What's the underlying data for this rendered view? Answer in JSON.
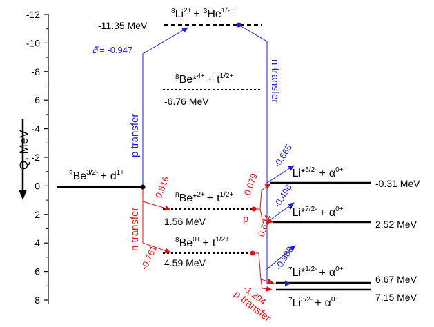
{
  "axis": {
    "label": "Q, MeV",
    "ticks": [
      "-12",
      "-10",
      "-8",
      "-6",
      "-4",
      "-2",
      "0",
      "2",
      "4",
      "6",
      "8"
    ]
  },
  "levels": {
    "li8_he3": {
      "A": "8",
      "el1": "Li",
      "j1": "2+",
      "plus": "+",
      "B": "3",
      "el2": "He",
      "j2": "1/2+",
      "value": "-11.35 MeV"
    },
    "be8_excited4": {
      "A": "8",
      "el1": "Be*",
      "j1": "4+",
      "plus": "+",
      "el2": "t",
      "j2": "1/2+",
      "value": "-6.76 MeV"
    },
    "be9_d": {
      "A": "9",
      "el1": "Be",
      "j1": "3/2-",
      "plus": "+",
      "el2": "d",
      "j2": "1+"
    },
    "be8_excited2": {
      "A": "8",
      "el1": "Be*",
      "j1": "2+",
      "plus": "+",
      "el2": "t",
      "j2": "1/2+",
      "value": "1.56 MeV"
    },
    "be8_ground": {
      "A": "8",
      "el1": "Be",
      "j1": "0+",
      "plus": "+",
      "el2": "t",
      "j2": "1/2+",
      "value": "4.59 MeV"
    },
    "li7_52": {
      "A": "7",
      "el1": "Li*",
      "j1": "5/2-",
      "plus": "+",
      "el2": "α",
      "j2": "0+",
      "value": "-0.31 MeV"
    },
    "li7_72": {
      "A": "7",
      "el1": "Li*",
      "j1": "7/2-",
      "plus": "+",
      "el2": "α",
      "j2": "0+",
      "value": "2.52 MeV"
    },
    "li7_12": {
      "A": "7",
      "el1": "Li*",
      "j1": "1/2-",
      "plus": "+",
      "el2": "α",
      "j2": "0+",
      "value": "6.67 MeV"
    },
    "li7_32": {
      "A": "7",
      "el1": "Li",
      "j1": "3/2-",
      "plus": "+",
      "el2": "α",
      "j2": "0+",
      "value": "7.15 MeV"
    }
  },
  "labels": {
    "p_transfer_up": "p transfer",
    "n_transfer_right": "n transfer",
    "n_transfer_left": "n transfer",
    "p_transfer_bottom": "p transfer",
    "p_mid": "p"
  },
  "coefficients": {
    "delta_symbol": "𝛿",
    "delta_value": "= -0.947",
    "c_0816": "0.816",
    "c_m0761": "-0.761",
    "c_0079": "0.079",
    "c_0624": "0.624",
    "c_m1204": "-1.204",
    "c_m0665": "-0.665",
    "c_m0496": "-0.496",
    "c_m0988": "-0.988"
  },
  "colors": {
    "level_line": "#000000",
    "p_path": "#1f1fd6",
    "n_path": "#e01010"
  }
}
